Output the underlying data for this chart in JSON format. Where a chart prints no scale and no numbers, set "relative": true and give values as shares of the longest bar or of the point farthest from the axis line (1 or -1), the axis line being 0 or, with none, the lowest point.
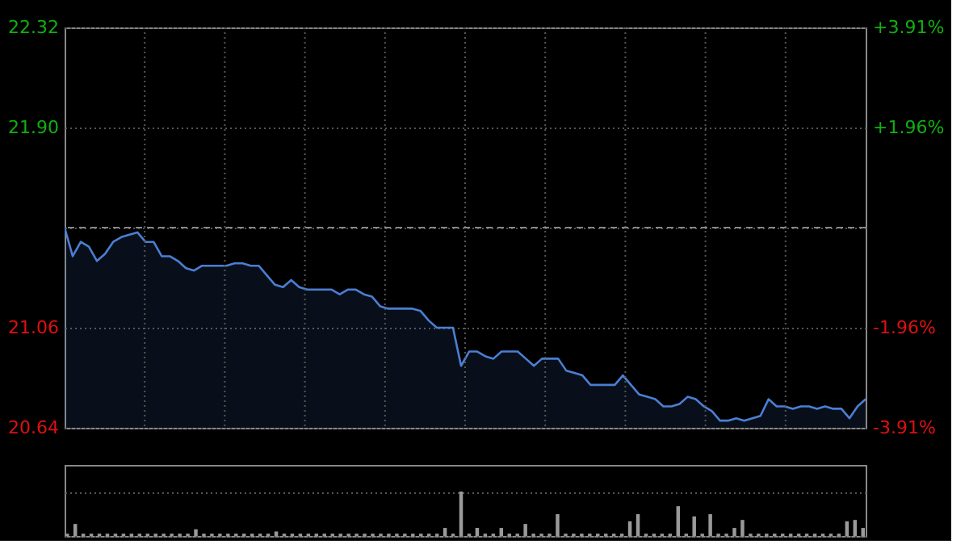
{
  "chart_data": [
    {
      "type": "area",
      "categories": [
        null,
        null,
        null,
        null,
        null,
        null,
        null,
        null,
        null,
        null,
        null,
        null,
        null,
        null,
        null,
        null,
        null,
        null,
        null,
        null,
        null,
        null,
        null,
        null,
        null,
        null,
        null,
        null,
        null,
        null,
        null,
        null,
        null,
        null,
        null,
        null,
        null,
        null,
        null,
        null,
        null,
        null,
        null,
        null,
        null,
        null,
        null,
        null,
        null,
        null,
        null,
        null,
        null,
        null,
        null,
        null,
        null,
        null,
        null,
        null,
        null,
        null,
        null,
        null,
        null,
        null,
        null,
        null,
        null,
        null,
        null,
        null,
        null,
        null,
        null,
        null,
        null,
        null,
        null,
        null,
        null,
        null,
        null,
        null,
        null,
        null,
        null,
        null,
        null,
        null,
        null,
        null,
        null,
        null,
        null,
        null,
        null,
        null,
        null,
        null
      ],
      "series": [
        {
          "color": "#4a7fd4",
          "values": [
            21.48,
            21.36,
            21.42,
            21.4,
            21.34,
            21.37,
            21.42,
            21.44,
            21.45,
            21.46,
            21.42,
            21.42,
            21.36,
            21.36,
            21.34,
            21.31,
            21.3,
            21.32,
            21.32,
            21.32,
            21.32,
            21.33,
            21.33,
            21.32,
            21.32,
            21.28,
            21.24,
            21.23,
            21.26,
            21.23,
            21.22,
            21.22,
            21.22,
            21.22,
            21.2,
            21.22,
            21.22,
            21.2,
            21.19,
            21.15,
            21.14,
            21.14,
            21.14,
            21.14,
            21.13,
            21.09,
            21.06,
            21.06,
            21.06,
            20.9,
            20.96,
            20.96,
            20.94,
            20.93,
            20.96,
            20.96,
            20.96,
            20.93,
            20.9,
            20.93,
            20.93,
            20.93,
            20.88,
            20.87,
            20.86,
            20.82,
            20.82,
            20.82,
            20.82,
            20.86,
            20.82,
            20.78,
            20.77,
            20.76,
            20.73,
            20.73,
            20.74,
            20.77,
            20.76,
            20.73,
            20.71,
            20.67,
            20.67,
            20.68,
            20.67,
            20.68,
            20.69,
            20.76,
            20.73,
            20.73,
            20.72,
            20.73,
            20.73,
            20.72,
            20.73,
            20.72,
            20.72,
            20.68,
            20.73,
            20.76
          ]
        }
      ],
      "ylim": [
        20.64,
        22.32
      ],
      "yticks": [
        20.64,
        21.06,
        {
          "value": 21.48,
          "label": null
        },
        {
          "value": 21.9,
          "label": "21.90"
        },
        22.32
      ],
      "y2lim": [
        -3.91,
        3.91
      ],
      "y2ticks": [
        {
          "value": -3.91,
          "label": "-3.91%"
        },
        {
          "value": -1.96,
          "label": "-1.96%"
        },
        {
          "value": 0,
          "label": null
        },
        {
          "value": 1.96,
          "label": "+1.96%"
        },
        {
          "value": 3.91,
          "label": "+3.91%"
        }
      ],
      "ref_lines": [
        {
          "axis": "y",
          "value": 21.48,
          "color": "#888888",
          "line_style": "dashed"
        }
      ],
      "grid": true,
      "tick_labels": "y"
    },
    {
      "type": "bar",
      "relative": true,
      "tick_labels": false,
      "grid": "y",
      "categories": [
        null,
        null,
        null,
        null,
        null,
        null,
        null,
        null,
        null,
        null,
        null,
        null,
        null,
        null,
        null,
        null,
        null,
        null,
        null,
        null,
        null,
        null,
        null,
        null,
        null,
        null,
        null,
        null,
        null,
        null,
        null,
        null,
        null,
        null,
        null,
        null,
        null,
        null,
        null,
        null,
        null,
        null,
        null,
        null,
        null,
        null,
        null,
        null,
        null,
        null,
        null,
        null,
        null,
        null,
        null,
        null,
        null,
        null,
        null,
        null,
        null,
        null,
        null,
        null,
        null,
        null,
        null,
        null,
        null,
        null,
        null,
        null,
        null,
        null,
        null,
        null,
        null,
        null,
        null,
        null,
        null,
        null,
        null,
        null,
        null,
        null,
        null,
        null,
        null,
        null,
        null,
        null,
        null,
        null,
        null,
        null,
        null,
        null,
        null,
        null
      ],
      "series": [
        {
          "color": "#9a9a9a",
          "values": [
            0.05,
            0.27,
            0.05,
            0.05,
            0.05,
            0.05,
            0.05,
            0.05,
            0.05,
            0.05,
            0.05,
            0.05,
            0.05,
            0.05,
            0.05,
            0.05,
            0.15,
            0.05,
            0.05,
            0.05,
            0.05,
            0.05,
            0.05,
            0.05,
            0.05,
            0.05,
            0.1,
            0.05,
            0.05,
            0.05,
            0.05,
            0.05,
            0.05,
            0.05,
            0.05,
            0.05,
            0.05,
            0.05,
            0.05,
            0.05,
            0.05,
            0.05,
            0.05,
            0.05,
            0.05,
            0.05,
            0.05,
            0.18,
            0.05,
            1,
            0.05,
            0.18,
            0.05,
            0.05,
            0.18,
            0.05,
            0.05,
            0.27,
            0.05,
            0.05,
            0.05,
            0.49,
            0.05,
            0.05,
            0.05,
            0.05,
            0.05,
            0.05,
            0.05,
            0.05,
            0.33,
            0.49,
            0.05,
            0.05,
            0.05,
            0.05,
            0.67,
            0.05,
            0.44,
            0.05,
            0.49,
            0.05,
            0.05,
            0.18,
            0.36,
            0.05,
            0.05,
            0.05,
            0.05,
            0.05,
            0.05,
            0.05,
            0.05,
            0.05,
            0.05,
            0.05,
            0.05,
            0.33,
            0.36,
            0.18
          ]
        }
      ]
    }
  ]
}
